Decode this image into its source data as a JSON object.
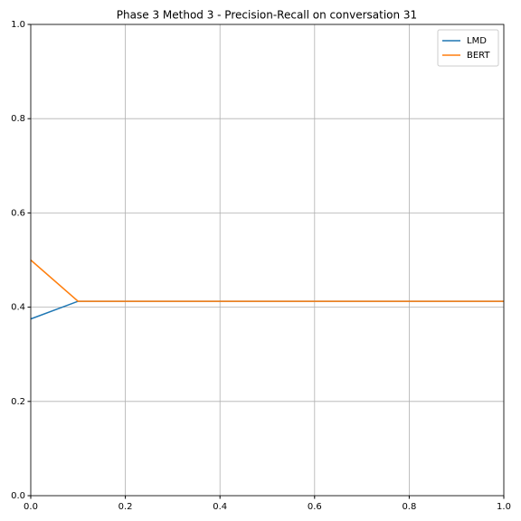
{
  "chart_data": {
    "type": "line",
    "title": "Phase 3 Method 3 - Precision-Recall on conversation 31",
    "x": [
      0,
      0.1,
      1
    ],
    "series": [
      {
        "name": "LMD",
        "color": "#1f77b4",
        "values": [
          0.375,
          0.4125,
          0.4125
        ]
      },
      {
        "name": "BERT",
        "color": "#ff7f0e",
        "values": [
          0.5,
          0.4125,
          0.4125
        ]
      }
    ],
    "xlim": [
      0,
      1
    ],
    "ylim": [
      0,
      1
    ],
    "xticks": [
      {
        "value": 0,
        "label": "0.0"
      },
      0.2,
      0.4,
      0.6,
      0.8,
      {
        "value": 1,
        "label": "1.0"
      }
    ],
    "yticks": [
      {
        "value": 0,
        "label": "0.0"
      },
      0.2,
      0.4,
      0.6,
      0.8,
      {
        "value": 1,
        "label": "1.0"
      }
    ],
    "grid": true,
    "legend": "upper-right"
  }
}
